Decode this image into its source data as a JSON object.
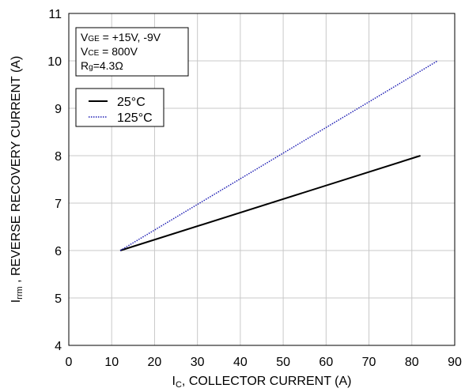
{
  "chart_data": {
    "type": "line",
    "xlabel_main": "I",
    "xlabel_sub": "C",
    "xlabel_rest": ", COLLECTOR CURRENT (A)",
    "ylabel_main": "I",
    "ylabel_sub": "rrm",
    "ylabel_rest": " , REVERSE RECOVERY CURRENT (A)",
    "xlim": [
      0,
      90
    ],
    "ylim": [
      4,
      11
    ],
    "xticks": [
      "0",
      "10",
      "20",
      "30",
      "40",
      "50",
      "60",
      "70",
      "80",
      "90"
    ],
    "yticks": [
      "4",
      "5",
      "6",
      "7",
      "8",
      "9",
      "10",
      "11"
    ],
    "grid": true,
    "conditions": {
      "vge_main": "V",
      "vge_sub": "GE",
      "vge_rest": " = +15V, -9V",
      "vce_main": "V",
      "vce_sub": "CE",
      "vce_rest": " = 800V",
      "rg_main": "R",
      "rg_sub": "g",
      "rg_rest": "=4.3Ω"
    },
    "legend_position": "top-left",
    "series": [
      {
        "name": "25°C",
        "style": "solid",
        "color": "#000000",
        "x": [
          12,
          82
        ],
        "y": [
          6.0,
          8.0
        ]
      },
      {
        "name": "125°C",
        "style": "dotted",
        "color": "#1f1fb4",
        "x": [
          12,
          86
        ],
        "y": [
          6.0,
          10.0
        ]
      }
    ]
  }
}
